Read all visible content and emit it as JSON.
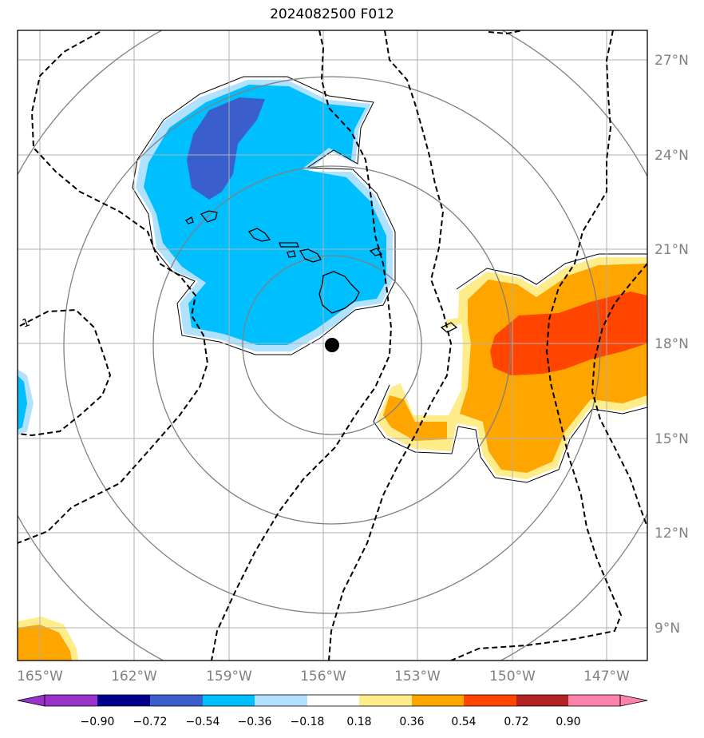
{
  "title": "2024082500 F012",
  "map": {
    "lon_range": [
      -166,
      -145
    ],
    "lat_range": [
      8,
      28
    ],
    "lon_ticks": [
      "165°W",
      "162°W",
      "159°W",
      "156°W",
      "153°W",
      "150°W",
      "147°W"
    ],
    "lon_tick_values": [
      -165,
      -162,
      -159,
      -156,
      -153,
      -150,
      -147
    ],
    "lat_ticks": [
      "27°N",
      "24°N",
      "21°N",
      "18°N",
      "15°N",
      "12°N",
      "9°N"
    ],
    "lat_tick_values": [
      27,
      24,
      21,
      18,
      15,
      12,
      9
    ],
    "grid": true,
    "center_marker": {
      "lon": -155.7,
      "lat": 17.9
    },
    "range_rings": 4,
    "dashed_contour_label": "1",
    "colors": {
      "c_neg_090": "#9933cc",
      "c_neg_072": "#00008b",
      "c_neg_054": "#3a5fcd",
      "c_neg_036": "#00bfff",
      "c_neg_018": "#b0e2ff",
      "c_zero": "#ffffff",
      "c_pos_018": "#ffec8b",
      "c_pos_036": "#ffa500",
      "c_pos_054": "#ff4500",
      "c_pos_072": "#b22222",
      "c_pos_090": "#ff82ab"
    }
  },
  "colorbar": {
    "labels": [
      "−0.90",
      "−0.72",
      "−0.54",
      "−0.36",
      "−0.18",
      "0.18",
      "0.36",
      "0.54",
      "0.72",
      "0.90"
    ],
    "values": [
      -0.9,
      -0.72,
      -0.54,
      -0.36,
      -0.18,
      0.18,
      0.36,
      0.54,
      0.72,
      0.9
    ],
    "colors": [
      "#9933cc",
      "#00008b",
      "#3a5fcd",
      "#00bfff",
      "#b0e2ff",
      "#ffffff",
      "#ffec8b",
      "#ffa500",
      "#ff4500",
      "#b22222",
      "#ff82ab"
    ]
  }
}
